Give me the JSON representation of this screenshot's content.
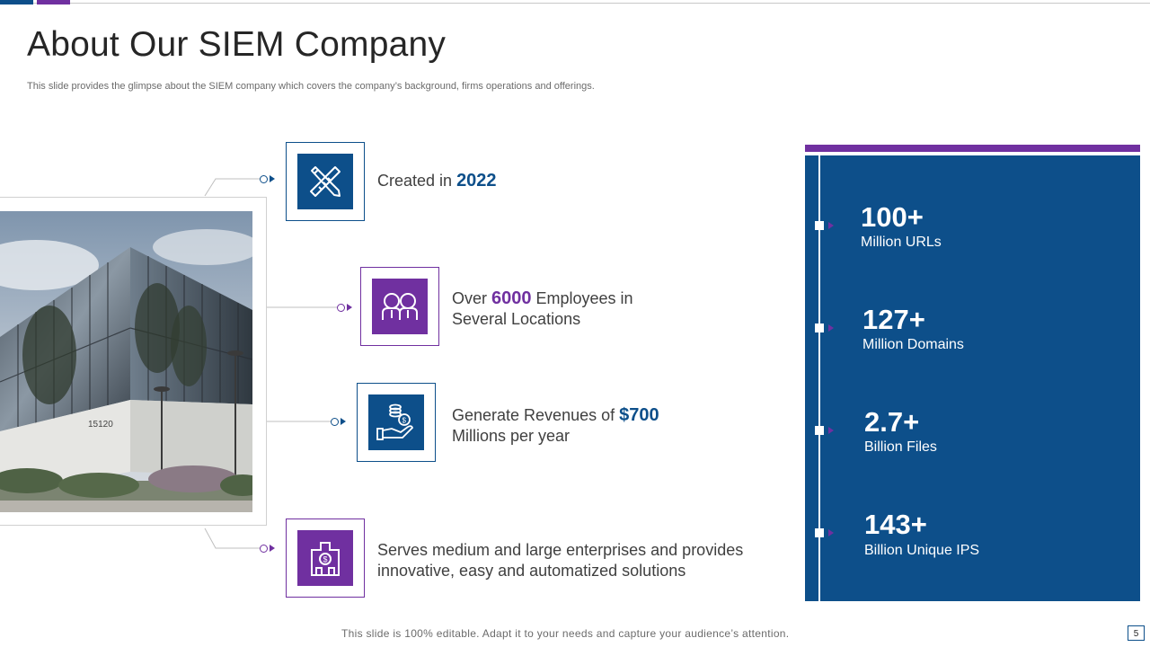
{
  "slide": {
    "title": "About Our SIEM Company",
    "subtitle": "This slide provides the glimpse about the SIEM company which covers the company’s background, firms operations and offerings.",
    "footer": "This slide is 100% editable. Adapt it to your needs and capture your audience’s attention.",
    "page_number": "5"
  },
  "photo": {
    "building_number": "15120"
  },
  "items": [
    {
      "icon": "pencil-ruler-icon",
      "pre": "Created in ",
      "highlight": "2022",
      "post": "",
      "line2": ""
    },
    {
      "icon": "employees-icon",
      "pre": "Over ",
      "highlight": "6000",
      "post": " Employees in",
      "line2": "Several Locations"
    },
    {
      "icon": "revenue-hand-icon",
      "pre": "Generate Revenues of ",
      "highlight": "$700",
      "post": "",
      "line2": "Millions per year"
    },
    {
      "icon": "enterprise-building-icon",
      "pre": "Serves medium and large enterprises and provides",
      "highlight": "",
      "post": "",
      "line2": "innovative, easy and automatized solutions"
    }
  ],
  "stats": [
    {
      "value": "100+",
      "label": "Million URLs"
    },
    {
      "value": "127+",
      "label": "Million Domains"
    },
    {
      "value": "2.7+",
      "label": "Billion Files"
    },
    {
      "value": "143+",
      "label": "Billion Unique IPS"
    }
  ],
  "colors": {
    "blue": "#0d4f8a",
    "purple": "#7030a0"
  }
}
